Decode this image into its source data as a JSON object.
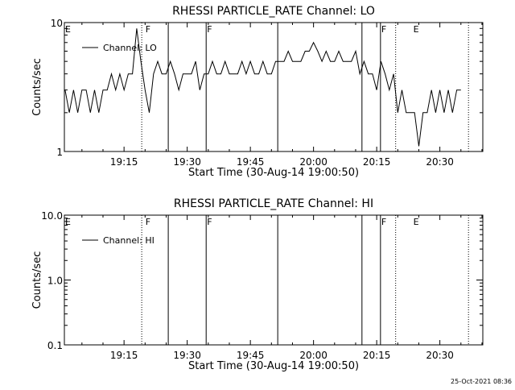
{
  "footer": {
    "timestamp": "25-Oct-2021 08:36"
  },
  "chart_data": [
    {
      "type": "line",
      "title": "RHESSI PARTICLE_RATE Channel: LO",
      "xlabel": "Start Time (30-Aug-14 19:00:50)",
      "ylabel": "Counts/sec",
      "yscale": "log",
      "ylim": [
        1,
        10
      ],
      "xlim_minutes": [
        0.83,
        40
      ],
      "xtick_values": [
        15,
        30,
        45,
        60,
        75,
        90
      ],
      "xtick_labels": [
        "19:15",
        "19:30",
        "19:45",
        "20:00",
        "20:15",
        "20:30"
      ],
      "ytick_values": [
        1,
        10
      ],
      "ytick_labels": [
        "1",
        "10"
      ],
      "legend": {
        "label": "Channel: LO",
        "position": "top-left"
      },
      "flags": [
        {
          "label": "E",
          "minute": 0.83
        },
        {
          "label": "F",
          "minute": 19.9
        },
        {
          "label": "F",
          "minute": 34.5
        },
        {
          "label": "F",
          "minute": 75.9
        },
        {
          "label": "E",
          "minute": 83.5
        }
      ],
      "solid_lines_minutes": [
        25.5,
        34.5,
        51.5,
        71.5,
        75.9
      ],
      "dotted_lines_minutes": [
        19.2,
        79.5,
        96.8
      ],
      "series": [
        {
          "name": "Channel: LO",
          "x": [
            1,
            2,
            3,
            4,
            5,
            6,
            7,
            8,
            9,
            10,
            11,
            12,
            13,
            14,
            15,
            16,
            17,
            18,
            19,
            20,
            21,
            22,
            23,
            24,
            25,
            26,
            27,
            28,
            29,
            30,
            31,
            32,
            33,
            34,
            35,
            36,
            37,
            38,
            39,
            40,
            41,
            42,
            43,
            44,
            45,
            46,
            47,
            48,
            49,
            50,
            51,
            52,
            53,
            54,
            55,
            56,
            57,
            58,
            59,
            60,
            61,
            62,
            63,
            64,
            65,
            66,
            67,
            68,
            69,
            70,
            71,
            72,
            73,
            74,
            75,
            76,
            77,
            78,
            79,
            80,
            81,
            82,
            83,
            84,
            85,
            86,
            87,
            88,
            89,
            90,
            91,
            92,
            93,
            94,
            95
          ],
          "y": [
            3,
            2,
            3,
            2,
            3,
            3,
            2,
            3,
            2,
            3,
            3,
            4,
            3,
            4,
            3,
            4,
            4,
            9,
            5,
            3,
            2,
            4,
            5,
            4,
            4,
            5,
            4,
            3,
            4,
            4,
            4,
            5,
            3,
            4,
            4,
            5,
            4,
            4,
            5,
            4,
            4,
            4,
            5,
            4,
            5,
            4,
            4,
            5,
            4,
            4,
            5,
            5,
            5,
            6,
            5,
            5,
            5,
            6,
            6,
            7,
            6,
            5,
            6,
            5,
            5,
            6,
            5,
            5,
            5,
            6,
            4,
            5,
            4,
            4,
            3,
            5,
            4,
            3,
            4,
            2,
            3,
            2,
            2,
            2,
            1.1,
            2,
            2,
            3,
            2,
            3,
            2,
            3,
            2,
            3,
            3
          ]
        }
      ]
    },
    {
      "type": "line",
      "title": "RHESSI PARTICLE_RATE Channel: HI",
      "xlabel": "Start Time (30-Aug-14 19:00:50)",
      "ylabel": "Counts/sec",
      "yscale": "log",
      "ylim": [
        0.1,
        10
      ],
      "xlim_minutes": [
        0.83,
        40
      ],
      "xtick_values": [
        15,
        30,
        45,
        60,
        75,
        90
      ],
      "xtick_labels": [
        "19:15",
        "19:30",
        "19:45",
        "20:00",
        "20:15",
        "20:30"
      ],
      "ytick_values": [
        0.1,
        1,
        10
      ],
      "ytick_labels": [
        "0.1",
        "1.0",
        "10.0"
      ],
      "legend": {
        "label": "Channel: HI",
        "position": "top-left"
      },
      "flags": [
        {
          "label": "E",
          "minute": 0.83
        },
        {
          "label": "F",
          "minute": 19.9
        },
        {
          "label": "F",
          "minute": 34.5
        },
        {
          "label": "F",
          "minute": 75.9
        },
        {
          "label": "E",
          "minute": 83.5
        }
      ],
      "solid_lines_minutes": [
        25.5,
        34.5,
        51.5,
        71.5,
        75.9
      ],
      "dotted_lines_minutes": [
        19.2,
        79.5,
        96.8
      ],
      "series": [
        {
          "name": "Channel: HI",
          "x": [],
          "y": []
        }
      ]
    }
  ]
}
